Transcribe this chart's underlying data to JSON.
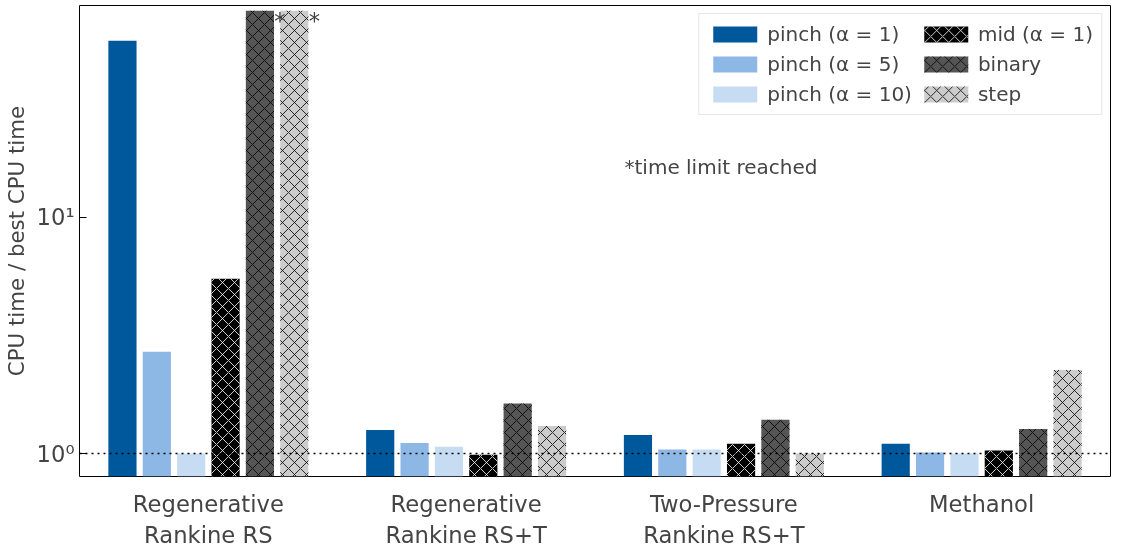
{
  "chart_data": {
    "type": "bar",
    "ylabel": "CPU time / best CPU time",
    "log": "y",
    "categories": [
      "Regenerative\nRankine RS",
      "Regenerative\nRankine RS+T",
      "Two-Pressure\nRankine RS+T",
      "Methanol"
    ],
    "series": [
      {
        "name": "pinch (α = 1)",
        "color": "#00589c",
        "values": [
          56,
          1.26,
          1.2,
          1.1
        ]
      },
      {
        "name": "pinch (α = 5)",
        "color": "#8db8e6",
        "values": [
          2.7,
          1.11,
          1.04,
          1.01
        ]
      },
      {
        "name": "pinch (α = 10)",
        "color": "#c6dcf2",
        "values": [
          1.0,
          1.07,
          1.04,
          1.0
        ]
      },
      {
        "name": "mid (α = 1)",
        "color": "#000000",
        "values": [
          5.5,
          0.99,
          1.1,
          1.03
        ]
      },
      {
        "name": "binary",
        "color": "#555555",
        "values": [
          75,
          1.63,
          1.39,
          1.27
        ]
      },
      {
        "name": "step",
        "color": "#cccccc",
        "values": [
          75,
          1.31,
          1.0,
          2.26
        ]
      }
    ],
    "ylim": [
      0.8,
      79
    ],
    "yticks": [
      {
        "value": 1,
        "label": "10⁰"
      },
      {
        "value": 10,
        "label": "10¹"
      }
    ],
    "ref_lines": [
      {
        "axis": "y",
        "value": 1,
        "line_style": "dotted",
        "color": "#000000"
      }
    ],
    "annotations": [
      "*",
      "*",
      "*time limit reached"
    ],
    "legend": "top right",
    "grid": false
  }
}
